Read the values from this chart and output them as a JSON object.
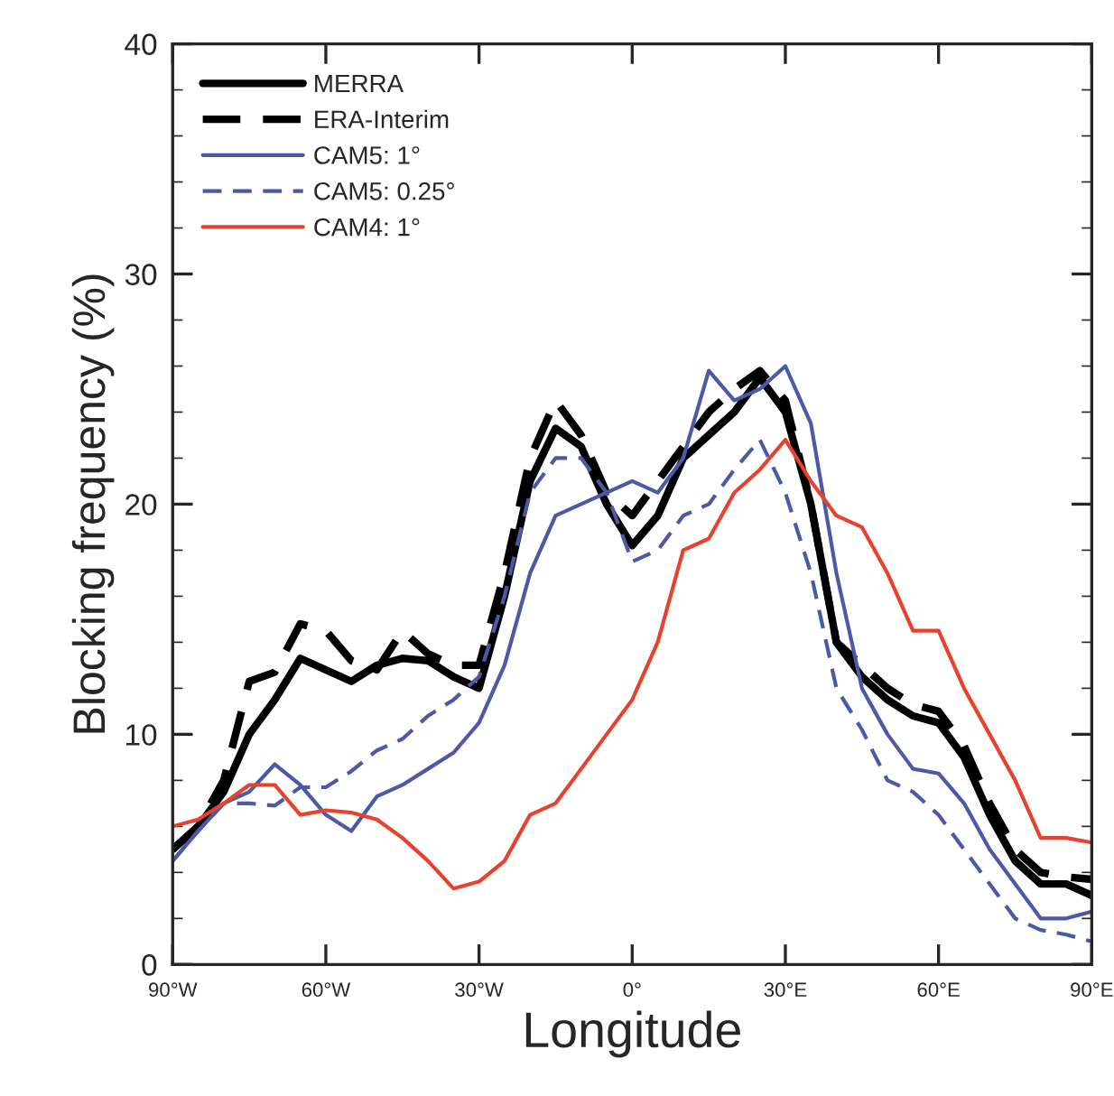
{
  "chart_data": {
    "type": "line",
    "xlabel": "Longitude",
    "ylabel": "Blocking frequency (%)",
    "x": [
      -90,
      -85,
      -80,
      -75,
      -70,
      -65,
      -60,
      -55,
      -50,
      -45,
      -40,
      -35,
      -30,
      -25,
      -20,
      -15,
      -10,
      -5,
      0,
      5,
      10,
      15,
      20,
      25,
      30,
      35,
      40,
      45,
      50,
      55,
      60,
      65,
      70,
      75,
      80,
      85,
      90
    ],
    "series": [
      {
        "name": "MERRA",
        "color": "#000000",
        "line_style": "solid",
        "values": [
          5,
          6,
          7.5,
          10,
          11.5,
          13.3,
          12.8,
          12.3,
          13,
          13.3,
          13.2,
          12.5,
          12,
          16,
          21,
          23.3,
          22.5,
          20,
          18.2,
          19.5,
          22,
          23,
          24,
          25.5,
          24,
          20,
          14,
          12.5,
          11.5,
          10.8,
          10.5,
          9,
          6.5,
          4.5,
          3.5,
          3.5,
          3
        ]
      },
      {
        "name": "ERA-Interim",
        "color": "#000000",
        "line_style": "dashed",
        "values": [
          5,
          6,
          8,
          12.3,
          12.7,
          14.8,
          14.5,
          13.2,
          12.8,
          14.5,
          13.5,
          13,
          13,
          17,
          22,
          24.5,
          23,
          20.5,
          19.5,
          21,
          22.5,
          24,
          25,
          25.8,
          24.5,
          20,
          14,
          13,
          12,
          11.3,
          11,
          9.5,
          7,
          5,
          4,
          3.8,
          3.7
        ]
      },
      {
        "name": "CAM5: 1°",
        "color": "#4a5aa8",
        "line_style": "solid",
        "values": [
          4.5,
          5.8,
          7,
          7.5,
          8.7,
          7.8,
          6.5,
          5.8,
          7.3,
          7.8,
          8.5,
          9.2,
          10.5,
          13,
          17,
          19.5,
          20,
          20.5,
          21,
          20.5,
          22,
          25.8,
          24.5,
          25,
          26,
          23.5,
          17,
          12,
          10,
          8.5,
          8.3,
          7,
          5,
          3.5,
          2,
          2,
          2.3
        ]
      },
      {
        "name": "CAM5: 0.25°",
        "color": "#4a5aa8",
        "line_style": "dashed",
        "values": [
          4.5,
          5.8,
          7,
          7,
          6.9,
          7.7,
          7.7,
          8.4,
          9.3,
          9.8,
          10.8,
          11.5,
          12.5,
          16,
          20.5,
          22,
          22,
          20.5,
          17.5,
          18,
          19.5,
          20,
          21.5,
          22.8,
          20.5,
          17,
          12,
          10.2,
          8,
          7.5,
          6.5,
          5,
          3.5,
          2,
          1.5,
          1.3,
          1
        ]
      },
      {
        "name": "CAM4: 1°",
        "color": "#e8412e",
        "line_style": "solid",
        "values": [
          6,
          6.3,
          7,
          7.8,
          7.8,
          6.5,
          6.7,
          6.6,
          6.3,
          5.5,
          4.5,
          3.3,
          3.6,
          4.5,
          6.5,
          7,
          8.5,
          10,
          11.5,
          14,
          18,
          18.5,
          20.5,
          21.5,
          22.8,
          21,
          19.5,
          19,
          17,
          14.5,
          14.5,
          12,
          10,
          8,
          5.5,
          5.5,
          5.3
        ]
      }
    ],
    "xlim": [
      -90,
      90
    ],
    "xticks": [
      {
        "value": -90,
        "label": "90°W"
      },
      {
        "value": -60,
        "label": "60°W"
      },
      {
        "value": -30,
        "label": "30°W"
      },
      {
        "value": 0,
        "label": "0°"
      },
      {
        "value": 30,
        "label": "30°E"
      },
      {
        "value": 60,
        "label": "60°E"
      },
      {
        "value": 90,
        "label": "90°E"
      }
    ],
    "ylim": [
      0,
      40
    ],
    "yticks": [
      0,
      10,
      20,
      30,
      40
    ],
    "grid": false,
    "legend": "top left",
    "marker": "none"
  }
}
